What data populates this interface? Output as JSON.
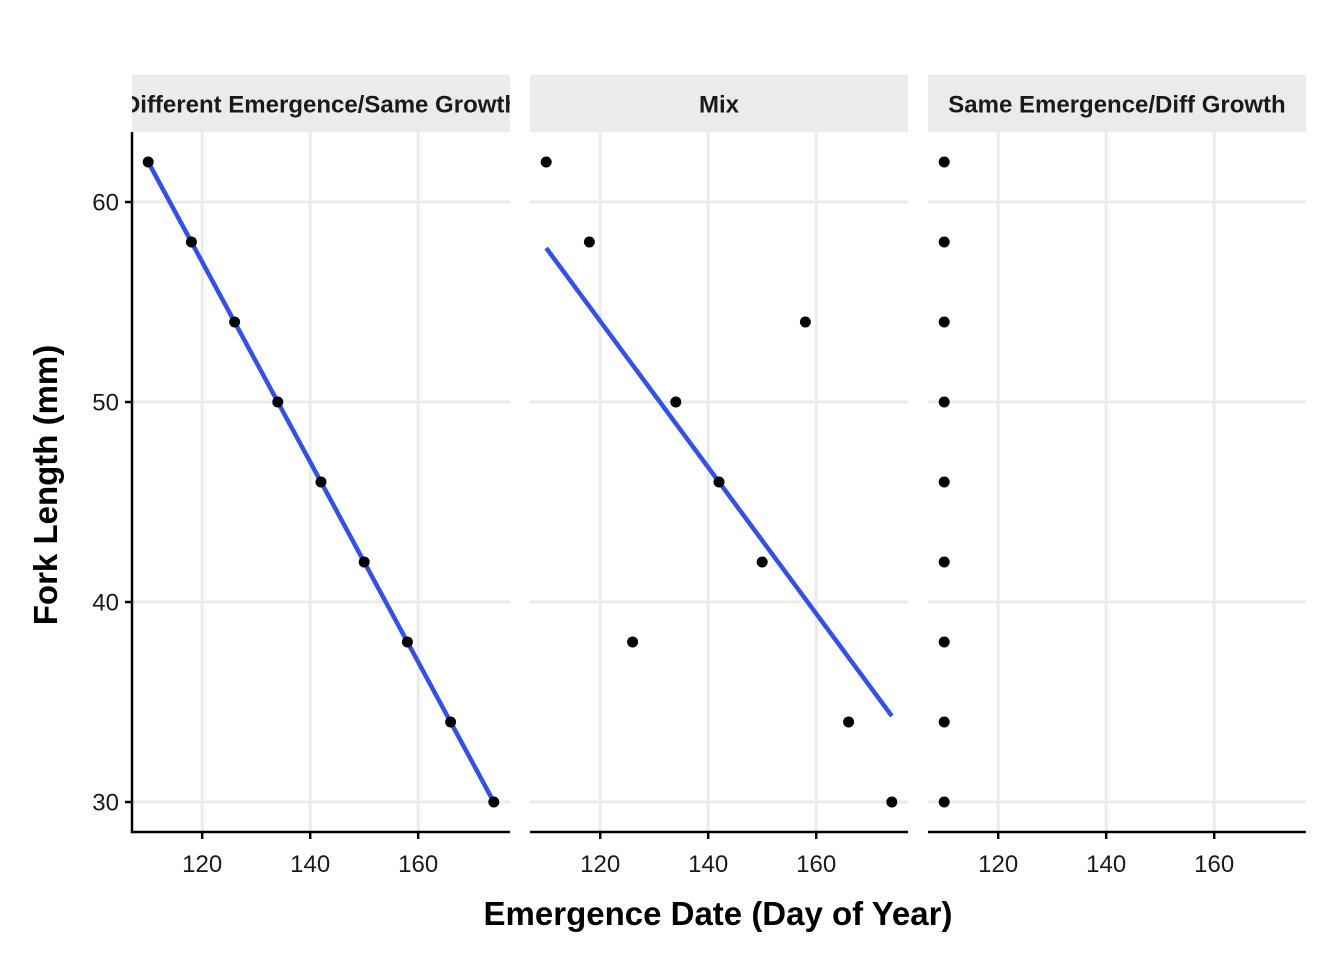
{
  "chart_data": {
    "type": "scatter",
    "xlabel": "Emergence Date (Day of Year)",
    "ylabel": "Fork Length (mm)",
    "xlim": [
      107,
      177
    ],
    "ylim": [
      28.5,
      63.5
    ],
    "x_ticks": [
      120,
      140,
      160
    ],
    "y_ticks": [
      30,
      40,
      50,
      60
    ],
    "grid": true,
    "colors": {
      "points": "#000000",
      "fit_line": "#3150f2",
      "strip": "#ebebeb",
      "grid": "#ebebeb"
    },
    "panels": [
      {
        "title": "Different Emergence/Same Growth",
        "points": [
          {
            "x": 110,
            "y": 62
          },
          {
            "x": 118,
            "y": 58
          },
          {
            "x": 126,
            "y": 54
          },
          {
            "x": 134,
            "y": 50
          },
          {
            "x": 142,
            "y": 46
          },
          {
            "x": 150,
            "y": 42
          },
          {
            "x": 158,
            "y": 38
          },
          {
            "x": 166,
            "y": 34
          },
          {
            "x": 174,
            "y": 30
          }
        ],
        "fit": {
          "x": [
            110,
            174
          ],
          "y": [
            62,
            30
          ]
        }
      },
      {
        "title": "Mix",
        "points": [
          {
            "x": 110,
            "y": 62
          },
          {
            "x": 118,
            "y": 58
          },
          {
            "x": 126,
            "y": 38
          },
          {
            "x": 134,
            "y": 50
          },
          {
            "x": 142,
            "y": 46
          },
          {
            "x": 150,
            "y": 42
          },
          {
            "x": 158,
            "y": 54
          },
          {
            "x": 166,
            "y": 34
          },
          {
            "x": 174,
            "y": 30
          }
        ],
        "fit": {
          "x": [
            110,
            174
          ],
          "y": [
            57.7,
            34.3
          ]
        }
      },
      {
        "title": "Same Emergence/Diff Growth",
        "points": [
          {
            "x": 110,
            "y": 62
          },
          {
            "x": 110,
            "y": 58
          },
          {
            "x": 110,
            "y": 54
          },
          {
            "x": 110,
            "y": 50
          },
          {
            "x": 110,
            "y": 46
          },
          {
            "x": 110,
            "y": 42
          },
          {
            "x": 110,
            "y": 38
          },
          {
            "x": 110,
            "y": 34
          },
          {
            "x": 110,
            "y": 30
          }
        ],
        "fit": null
      }
    ]
  }
}
